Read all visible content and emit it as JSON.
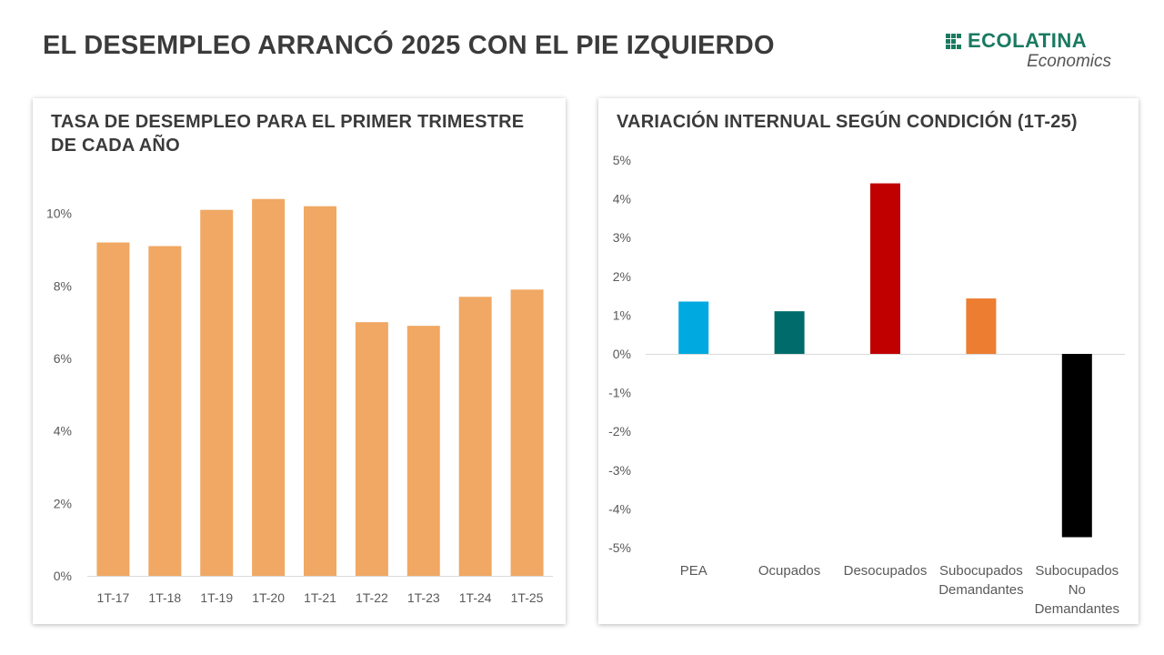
{
  "header": {
    "title": "EL DESEMPLEO ARRANCÓ 2025 CON EL PIE IZQUIERDO"
  },
  "logo": {
    "name": "ECOLATINA",
    "sub": "Economics",
    "color": "#1a7a61"
  },
  "chart_data": [
    {
      "type": "bar",
      "title": "TASA DE DESEMPLEO PARA EL PRIMER TRIMESTRE DE CADA AÑO",
      "categories": [
        "1T-17",
        "1T-18",
        "1T-19",
        "1T-20",
        "1T-21",
        "1T-22",
        "1T-23",
        "1T-24",
        "1T-25"
      ],
      "values": [
        9.2,
        9.1,
        10.1,
        10.4,
        10.2,
        7.0,
        6.9,
        7.7,
        7.9
      ],
      "ylim": [
        0,
        12
      ],
      "yticks": [
        0,
        2,
        4,
        6,
        8,
        10
      ],
      "ytick_labels": [
        "0%",
        "2%",
        "4%",
        "6%",
        "8%",
        "10%"
      ],
      "unit": "%",
      "grid": false,
      "color": "#f0a864"
    },
    {
      "type": "bar",
      "title": "VARIACIÓN INTERNUAL SEGÚN CONDICIÓN (1T-25)",
      "categories": [
        "PEA",
        "Ocupados",
        "Desocupados",
        "Subocupados Demandantes",
        "Subocupados No Demandantes"
      ],
      "category_lines": [
        [
          "PEA"
        ],
        [
          "Ocupados"
        ],
        [
          "Desocupados"
        ],
        [
          "Subocupados",
          "Demandantes"
        ],
        [
          "Subocupados",
          "No",
          "Demandantes"
        ]
      ],
      "values": [
        1.35,
        1.1,
        4.4,
        1.43,
        -4.73
      ],
      "colors": [
        "#00a9e0",
        "#006b6b",
        "#c00000",
        "#ed7d31",
        "#000000"
      ],
      "ylim": [
        -5,
        5
      ],
      "yticks": [
        5,
        4,
        3,
        2,
        1,
        0,
        -1,
        -2,
        -3,
        -4,
        -5
      ],
      "ytick_labels": [
        "5%",
        "4%",
        "3%",
        "2%",
        "1%",
        "0%",
        "-1%",
        "-2%",
        "-3%",
        "-4%",
        "-5%"
      ],
      "unit": "%",
      "grid": false
    }
  ]
}
